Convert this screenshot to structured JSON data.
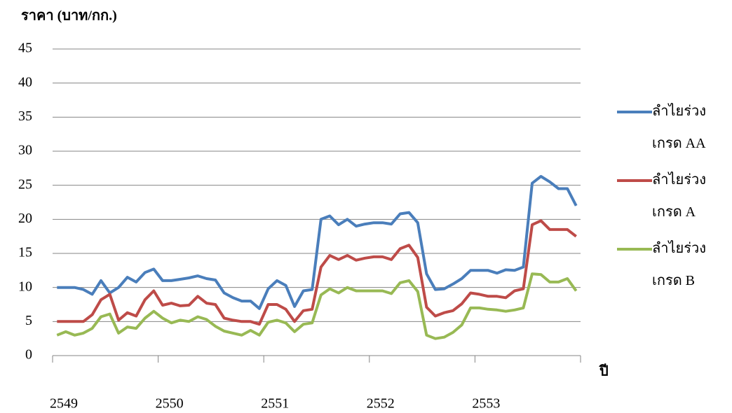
{
  "chart_data": {
    "type": "line",
    "title": "ราคา (บาท/กก.)",
    "x_label": "ปี",
    "categories": [
      "2549",
      null,
      null,
      null,
      null,
      null,
      null,
      null,
      null,
      null,
      null,
      null,
      "2550",
      null,
      null,
      null,
      null,
      null,
      null,
      null,
      null,
      null,
      null,
      null,
      "2551",
      null,
      null,
      null,
      null,
      null,
      null,
      null,
      null,
      null,
      null,
      null,
      "2552",
      null,
      null,
      null,
      null,
      null,
      null,
      null,
      null,
      null,
      null,
      null,
      "2553",
      null,
      null,
      null,
      null,
      null,
      null,
      null,
      null,
      null,
      null,
      null
    ],
    "ylim": [
      0,
      45
    ],
    "yticks": [
      0,
      5,
      10,
      15,
      20,
      25,
      30,
      35,
      40,
      45
    ],
    "grid": true,
    "legend": "right",
    "series": [
      {
        "name": "ลำไยร่วง เกรด AA",
        "color": "#4a7ebb",
        "values": [
          10,
          10,
          10,
          9.7,
          9,
          11,
          9.2,
          10,
          11.5,
          10.8,
          12.2,
          12.7,
          11,
          11,
          11.2,
          11.4,
          11.7,
          11.3,
          11.1,
          9.2,
          8.5,
          8,
          8,
          6.9,
          9.8,
          11,
          10.3,
          7.2,
          9.5,
          9.7,
          20,
          20.5,
          19.2,
          20,
          19,
          19.3,
          19.5,
          19.5,
          19.3,
          20.8,
          21,
          19.5,
          12,
          9.7,
          9.8,
          10.5,
          11.3,
          12.5,
          12.5,
          12.5,
          12.1,
          12.6,
          12.5,
          13,
          25.3,
          26.3,
          25.5,
          24.5,
          24.5,
          22
        ]
      },
      {
        "name": "ลำไยร่วง เกรด A",
        "color": "#be4b48",
        "values": [
          5,
          5,
          5,
          5,
          6,
          8.2,
          9,
          5.2,
          6.3,
          5.8,
          8.2,
          9.5,
          7.4,
          7.7,
          7.3,
          7.4,
          8.7,
          7.7,
          7.5,
          5.5,
          5.2,
          5,
          5,
          4.6,
          7.5,
          7.5,
          6.8,
          5,
          6.6,
          6.8,
          13,
          14.7,
          14.1,
          14.7,
          14,
          14.3,
          14.5,
          14.5,
          14.1,
          15.7,
          16.2,
          14.4,
          7.1,
          5.8,
          6.3,
          6.6,
          7.6,
          9.2,
          9,
          8.7,
          8.7,
          8.5,
          9.5,
          9.8,
          19.2,
          19.8,
          18.5,
          18.5,
          18.5,
          17.5
        ]
      },
      {
        "name": "ลำไยร่วง เกรด B",
        "color": "#98b954",
        "values": [
          3,
          3.5,
          3,
          3.3,
          4,
          5.7,
          6.1,
          3.3,
          4.2,
          4,
          5.5,
          6.5,
          5.5,
          4.8,
          5.2,
          5,
          5.7,
          5.3,
          4.3,
          3.6,
          3.3,
          3,
          3.7,
          3,
          4.9,
          5.2,
          4.8,
          3.5,
          4.6,
          4.8,
          8.9,
          9.8,
          9.2,
          10,
          9.5,
          9.5,
          9.5,
          9.5,
          9.1,
          10.7,
          11,
          9.4,
          3,
          2.5,
          2.7,
          3.4,
          4.5,
          7,
          7,
          6.8,
          6.7,
          6.5,
          6.7,
          7,
          12,
          11.9,
          10.8,
          10.8,
          11.3,
          9.5
        ]
      }
    ]
  }
}
